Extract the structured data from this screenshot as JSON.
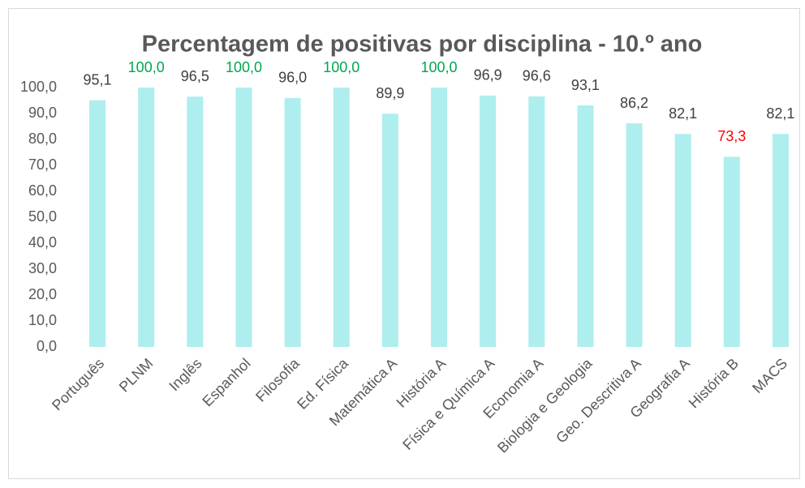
{
  "chart_data": {
    "type": "bar",
    "title": "Percentagem de positivas por disciplina - 10.º ano",
    "categories": [
      "Português",
      "PLNM",
      "Inglês",
      "Espanhol",
      "Filosofia",
      "Ed. Física",
      "Matemática A",
      "História A",
      "Física e Química A",
      "Economia A",
      "Biologia e Geologia",
      "Geo. Descritiva A",
      "Geografia A",
      "História B",
      "MACS"
    ],
    "values": [
      95.1,
      100,
      96.5,
      100,
      96,
      100,
      89.9,
      100,
      96.9,
      96.6,
      93.1,
      86.2,
      82.1,
      73.3,
      82.1
    ],
    "value_labels": [
      "95,1",
      "100,0",
      "96,5",
      "100,0",
      "96,0",
      "100,0",
      "89,9",
      "100,0",
      "96,9",
      "96,6",
      "93,1",
      "86,2",
      "82,1",
      "73,3",
      "82,1"
    ],
    "value_label_colors": [
      "#404040",
      "#00a650",
      "#404040",
      "#00a650",
      "#404040",
      "#00a650",
      "#404040",
      "#00a650",
      "#404040",
      "#404040",
      "#404040",
      "#404040",
      "#404040",
      "#ff0000",
      "#404040"
    ],
    "color": "#aeeeee",
    "ylim": [
      0,
      100
    ],
    "yticks": [
      {
        "value": 0,
        "label": "0,0"
      },
      {
        "value": 10,
        "label": "10,0"
      },
      {
        "value": 20,
        "label": "20,0"
      },
      {
        "value": 30,
        "label": "30,0"
      },
      {
        "value": 40,
        "label": "40,0"
      },
      {
        "value": 50,
        "label": "50,0"
      },
      {
        "value": 60,
        "label": "60,0"
      },
      {
        "value": 70,
        "label": "70,0"
      },
      {
        "value": 80,
        "label": "80,0"
      },
      {
        "value": 90,
        "label": "90,0"
      },
      {
        "value": 100,
        "label": "100,0"
      }
    ],
    "grid": false
  }
}
